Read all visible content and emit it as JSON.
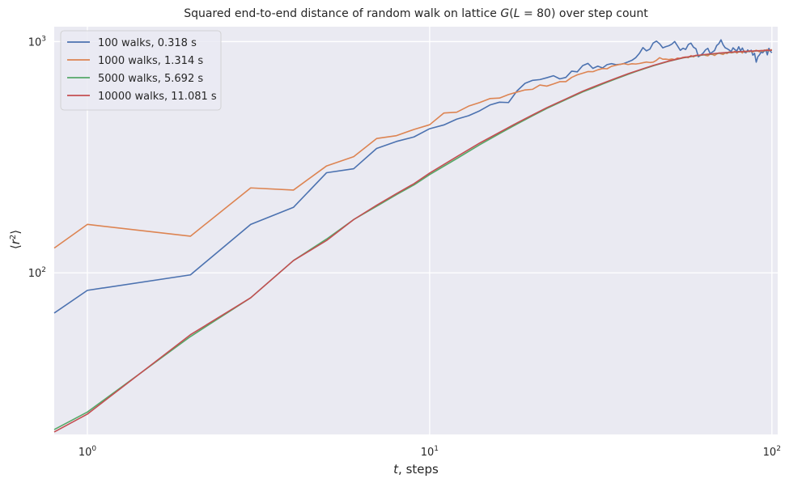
{
  "chart_data": {
    "type": "line",
    "title": "Squared end-to-end distance of random walk on lattice G(L = 80) over step count",
    "title_parts": {
      "prefix": "Squared end-to-end distance of random walk on lattice ",
      "func": "G",
      "open": "(",
      "var": "L",
      "eq": " = 80",
      "close": ")",
      "suffix": " over step count"
    },
    "xlabel": "t, steps",
    "xlabel_parts": {
      "var": "t",
      "rest": ", steps"
    },
    "ylabel": "⟨r²⟩",
    "ylabel_parts": {
      "open": "⟨",
      "var": "r",
      "sup": "2",
      "close": "⟩"
    },
    "xscale": "log",
    "yscale": "log",
    "xlim": [
      0.8,
      104
    ],
    "ylim": [
      20,
      1160
    ],
    "xticks": [
      1,
      10,
      100
    ],
    "xtick_labels": [
      {
        "base": "10",
        "exp": "0"
      },
      {
        "base": "10",
        "exp": "1"
      },
      {
        "base": "10",
        "exp": "2"
      }
    ],
    "yticks": [
      100,
      1000
    ],
    "ytick_labels": [
      {
        "base": "10",
        "exp": "2"
      },
      {
        "base": "10",
        "exp": "3"
      }
    ],
    "grid": true,
    "legend_position": "top-left",
    "background": "#EAEAF2",
    "series": [
      {
        "name": "100 walks, 0.318 s",
        "color": "#4C72B0",
        "points": [
          [
            0.8,
            67
          ],
          [
            1,
            84
          ],
          [
            2,
            98
          ],
          [
            3,
            162
          ],
          [
            4,
            192
          ],
          [
            5,
            271
          ],
          [
            6,
            282
          ],
          [
            7,
            345
          ],
          [
            8,
            370
          ],
          [
            9,
            387
          ],
          [
            10,
            420
          ],
          [
            11,
            436
          ],
          [
            12,
            462
          ],
          [
            13,
            478
          ],
          [
            14,
            502
          ],
          [
            15,
            532
          ],
          [
            16,
            547
          ],
          [
            17,
            545
          ],
          [
            18,
            612
          ],
          [
            19,
            660
          ],
          [
            20,
            680
          ],
          [
            21,
            685
          ],
          [
            22,
            698
          ],
          [
            23,
            712
          ],
          [
            24,
            690
          ],
          [
            25,
            700
          ],
          [
            26,
            745
          ],
          [
            27,
            740
          ],
          [
            28,
            787
          ],
          [
            29,
            805
          ],
          [
            30,
            766
          ],
          [
            31,
            783
          ],
          [
            32,
            769
          ],
          [
            33,
            795
          ],
          [
            34,
            803
          ],
          [
            35,
            795
          ],
          [
            36,
            797
          ],
          [
            37,
            805
          ],
          [
            38,
            817
          ],
          [
            39,
            830
          ],
          [
            40,
            852
          ],
          [
            41,
            889
          ],
          [
            42,
            942
          ],
          [
            43,
            912
          ],
          [
            44,
            928
          ],
          [
            45,
            986
          ],
          [
            46,
            1005
          ],
          [
            47,
            978
          ],
          [
            48,
            940
          ],
          [
            49,
            951
          ],
          [
            50,
            960
          ],
          [
            51,
            975
          ],
          [
            52,
            1001
          ],
          [
            53,
            958
          ],
          [
            54,
            917
          ],
          [
            55,
            936
          ],
          [
            56,
            925
          ],
          [
            57,
            972
          ],
          [
            58,
            985
          ],
          [
            59,
            946
          ],
          [
            60,
            931
          ],
          [
            61,
            860
          ],
          [
            62,
            874
          ],
          [
            63,
            893
          ],
          [
            64,
            921
          ],
          [
            65,
            935
          ],
          [
            66,
            888
          ],
          [
            67,
            901
          ],
          [
            68,
            915
          ],
          [
            69,
            962
          ],
          [
            70,
            980
          ],
          [
            71,
            1018
          ],
          [
            72,
            970
          ],
          [
            73,
            941
          ],
          [
            74,
            932
          ],
          [
            75,
            920
          ],
          [
            76,
            905
          ],
          [
            77,
            940
          ],
          [
            78,
            923
          ],
          [
            79,
            911
          ],
          [
            80,
            950
          ],
          [
            81,
            912
          ],
          [
            82,
            938
          ],
          [
            83,
            901
          ],
          [
            84,
            894
          ],
          [
            85,
            920
          ],
          [
            86,
            904
          ],
          [
            87,
            918
          ],
          [
            88,
            873
          ],
          [
            89,
            890
          ],
          [
            90,
            815
          ],
          [
            91,
            860
          ],
          [
            92,
            877
          ],
          [
            93,
            900
          ],
          [
            94,
            895
          ],
          [
            95,
            910
          ],
          [
            96,
            920
          ],
          [
            97,
            876
          ],
          [
            98,
            935
          ],
          [
            99,
            908
          ],
          [
            100,
            895
          ]
        ]
      },
      {
        "name": "1000 walks, 1.314 s",
        "color": "#DD8452",
        "points": [
          [
            0.8,
            128
          ],
          [
            1,
            162
          ],
          [
            2,
            144
          ],
          [
            3,
            233
          ],
          [
            4,
            228
          ],
          [
            5,
            290
          ],
          [
            6,
            318
          ],
          [
            7,
            381
          ],
          [
            8,
            392
          ],
          [
            9,
            417
          ],
          [
            10,
            437
          ],
          [
            11,
            491
          ],
          [
            12,
            495
          ],
          [
            13,
            526
          ],
          [
            14,
            545
          ],
          [
            15,
            567
          ],
          [
            16,
            570
          ],
          [
            17,
            590
          ],
          [
            18,
            605
          ],
          [
            19,
            618
          ],
          [
            20,
            622
          ],
          [
            21,
            649
          ],
          [
            22,
            642
          ],
          [
            23,
            656
          ],
          [
            24,
            671
          ],
          [
            25,
            671
          ],
          [
            26,
            700
          ],
          [
            27,
            718
          ],
          [
            28,
            730
          ],
          [
            29,
            742
          ],
          [
            30,
            741
          ],
          [
            31,
            755
          ],
          [
            32,
            765
          ],
          [
            33,
            763
          ],
          [
            34,
            782
          ],
          [
            35,
            790
          ],
          [
            36,
            797
          ],
          [
            37,
            803
          ],
          [
            38,
            796
          ],
          [
            39,
            802
          ],
          [
            40,
            800
          ],
          [
            41,
            804
          ],
          [
            42,
            810
          ],
          [
            43,
            816
          ],
          [
            44,
            812
          ],
          [
            45,
            815
          ],
          [
            46,
            830
          ],
          [
            47,
            852
          ],
          [
            48,
            839
          ],
          [
            49,
            840
          ],
          [
            50,
            836
          ],
          [
            51,
            841
          ],
          [
            52,
            836
          ],
          [
            53,
            849
          ],
          [
            54,
            846
          ],
          [
            55,
            855
          ],
          [
            56,
            858
          ],
          [
            57,
            852
          ],
          [
            58,
            870
          ],
          [
            59,
            859
          ],
          [
            60,
            873
          ],
          [
            61,
            872
          ],
          [
            62,
            872
          ],
          [
            63,
            880
          ],
          [
            64,
            872
          ],
          [
            65,
            868
          ],
          [
            66,
            882
          ],
          [
            67,
            880
          ],
          [
            68,
            871
          ],
          [
            69,
            884
          ],
          [
            70,
            893
          ],
          [
            71,
            885
          ],
          [
            72,
            880
          ],
          [
            73,
            892
          ],
          [
            74,
            888
          ],
          [
            75,
            903
          ],
          [
            76,
            894
          ],
          [
            77,
            897
          ],
          [
            78,
            909
          ],
          [
            79,
            892
          ],
          [
            80,
            904
          ],
          [
            81,
            906
          ],
          [
            82,
            893
          ],
          [
            83,
            912
          ],
          [
            84,
            901
          ],
          [
            85,
            906
          ],
          [
            86,
            912
          ],
          [
            87,
            908
          ],
          [
            88,
            902
          ],
          [
            89,
            911
          ],
          [
            90,
            917
          ],
          [
            91,
            911
          ],
          [
            92,
            903
          ],
          [
            93,
            915
          ],
          [
            94,
            906
          ],
          [
            95,
            920
          ],
          [
            96,
            915
          ],
          [
            97,
            924
          ],
          [
            98,
            912
          ],
          [
            99,
            918
          ],
          [
            100,
            925
          ]
        ]
      },
      {
        "name": "5000 walks, 5.692 s",
        "color": "#55A868",
        "points": [
          [
            0.8,
            21
          ],
          [
            1,
            25
          ],
          [
            2,
            53
          ],
          [
            3,
            78
          ],
          [
            4,
            113
          ],
          [
            5,
            140
          ],
          [
            6,
            170
          ],
          [
            7,
            194
          ],
          [
            8,
            218
          ],
          [
            9,
            240
          ],
          [
            10,
            266
          ],
          [
            12,
            312
          ],
          [
            14,
            358
          ],
          [
            16,
            400
          ],
          [
            18,
            440
          ],
          [
            20,
            478
          ],
          [
            22,
            514
          ],
          [
            25,
            561
          ],
          [
            28,
            606
          ],
          [
            30,
            630
          ],
          [
            32,
            655
          ],
          [
            35,
            690
          ],
          [
            38,
            722
          ],
          [
            40,
            742
          ],
          [
            42,
            760
          ],
          [
            45,
            786
          ],
          [
            50,
            822
          ],
          [
            55,
            850
          ],
          [
            60,
            868
          ],
          [
            65,
            880
          ],
          [
            70,
            890
          ],
          [
            75,
            897
          ],
          [
            80,
            903
          ],
          [
            85,
            907
          ],
          [
            90,
            911
          ],
          [
            95,
            914
          ],
          [
            100,
            917
          ]
        ]
      },
      {
        "name": "10000 walks, 11.081 s",
        "color": "#C44E52",
        "points": [
          [
            0.8,
            20.5
          ],
          [
            1,
            24.5
          ],
          [
            2,
            54
          ],
          [
            3,
            78
          ],
          [
            4,
            113
          ],
          [
            5,
            138
          ],
          [
            6,
            170
          ],
          [
            7,
            196
          ],
          [
            8,
            220
          ],
          [
            9,
            243
          ],
          [
            10,
            270
          ],
          [
            12,
            318
          ],
          [
            14,
            364
          ],
          [
            16,
            405
          ],
          [
            18,
            445
          ],
          [
            20,
            482
          ],
          [
            22,
            518
          ],
          [
            25,
            565
          ],
          [
            28,
            610
          ],
          [
            30,
            636
          ],
          [
            32,
            660
          ],
          [
            35,
            694
          ],
          [
            38,
            726
          ],
          [
            40,
            745
          ],
          [
            42,
            763
          ],
          [
            45,
            789
          ],
          [
            50,
            824
          ],
          [
            55,
            852
          ],
          [
            60,
            870
          ],
          [
            65,
            882
          ],
          [
            70,
            892
          ],
          [
            75,
            899
          ],
          [
            80,
            904
          ],
          [
            85,
            908
          ],
          [
            90,
            912
          ],
          [
            95,
            915
          ],
          [
            100,
            918
          ]
        ]
      }
    ]
  }
}
